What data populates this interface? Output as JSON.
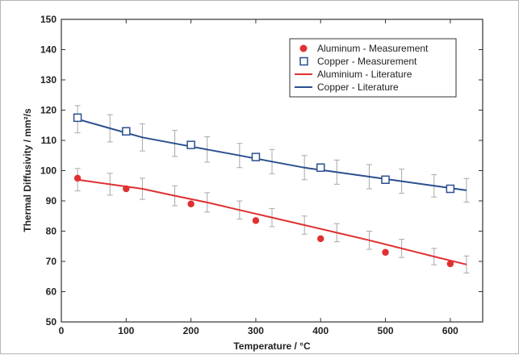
{
  "chart_data": {
    "type": "scatter",
    "title": "",
    "xlabel": "Temperature / °C",
    "ylabel": "Thermal Diffusivity / mm²/s",
    "xlim": [
      0,
      650
    ],
    "ylim": [
      50,
      150
    ],
    "xticks": [
      0,
      100,
      200,
      300,
      400,
      500,
      600
    ],
    "yticks": [
      50,
      60,
      70,
      80,
      90,
      100,
      110,
      120,
      130,
      140,
      150
    ],
    "grid": false,
    "legend_position": "top-right",
    "series": [
      {
        "name": "Aluminum - Measurement",
        "kind": "scatter",
        "marker": "filled-circle",
        "color": "#e03030",
        "x": [
          25,
          100,
          200,
          300,
          400,
          500,
          600
        ],
        "y": [
          97.5,
          94,
          89,
          83.5,
          77.5,
          73,
          69.2
        ]
      },
      {
        "name": "Copper - Measurement",
        "kind": "scatter",
        "marker": "open-square",
        "color": "#2a4f8f",
        "x": [
          25,
          100,
          200,
          300,
          400,
          500,
          600
        ],
        "y": [
          117.5,
          113,
          108.5,
          104.5,
          101,
          97,
          94
        ]
      },
      {
        "name": "Aluminium - Literature",
        "kind": "line",
        "color": "#e03030",
        "x": [
          25,
          75,
          125,
          175,
          225,
          275,
          325,
          375,
          425,
          475,
          525,
          575,
          625
        ],
        "y": [
          97,
          95.5,
          94,
          91.7,
          89.5,
          87,
          84.5,
          82,
          79.5,
          77,
          74.3,
          71.6,
          69
        ],
        "error": [
          3.7,
          3.6,
          3.5,
          3.3,
          3.2,
          3.0,
          3.0,
          3.0,
          3.0,
          3.0,
          3.0,
          2.7,
          2.8
        ]
      },
      {
        "name": "Copper - Literature",
        "kind": "line",
        "color": "#2a4f8f",
        "x": [
          25,
          75,
          125,
          175,
          225,
          275,
          325,
          375,
          425,
          475,
          525,
          575,
          625
        ],
        "y": [
          117,
          114,
          111,
          109,
          107,
          105,
          103,
          101,
          99.5,
          98,
          96.5,
          95,
          93.5
        ],
        "error": [
          4.5,
          4.5,
          4.5,
          4.3,
          4.2,
          4.0,
          4.0,
          4.0,
          4.0,
          4.0,
          4.0,
          3.7,
          3.9
        ]
      }
    ]
  }
}
